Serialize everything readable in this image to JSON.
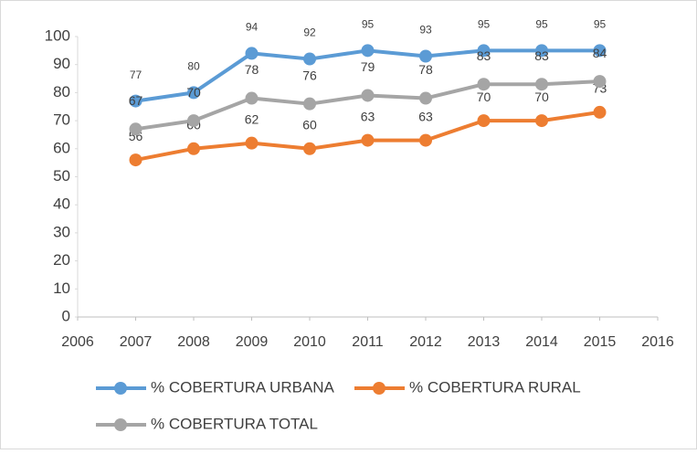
{
  "chart_data": {
    "type": "line",
    "x": [
      2007,
      2008,
      2009,
      2010,
      2011,
      2012,
      2013,
      2014,
      2015
    ],
    "series": [
      {
        "name": "% COBERTURA URBANA",
        "color": "#5b9bd5",
        "values": [
          77,
          80,
          94,
          92,
          95,
          93,
          95,
          95,
          95
        ]
      },
      {
        "name": "% COBERTURA RURAL",
        "color": "#ed7d31",
        "values": [
          56,
          60,
          62,
          60,
          63,
          63,
          70,
          70,
          73
        ]
      },
      {
        "name": "% COBERTURA TOTAL",
        "color": "#a5a5a5",
        "values": [
          67,
          70,
          78,
          76,
          79,
          78,
          83,
          83,
          84
        ]
      }
    ],
    "xlim": [
      2006,
      2016
    ],
    "xticks": [
      2006,
      2007,
      2008,
      2009,
      2010,
      2011,
      2012,
      2013,
      2014,
      2015,
      2016
    ],
    "ylim": [
      0,
      100
    ],
    "yticks": [
      0,
      10,
      20,
      30,
      40,
      50,
      60,
      70,
      80,
      90,
      100
    ],
    "grid": false,
    "legend": "bottom"
  }
}
